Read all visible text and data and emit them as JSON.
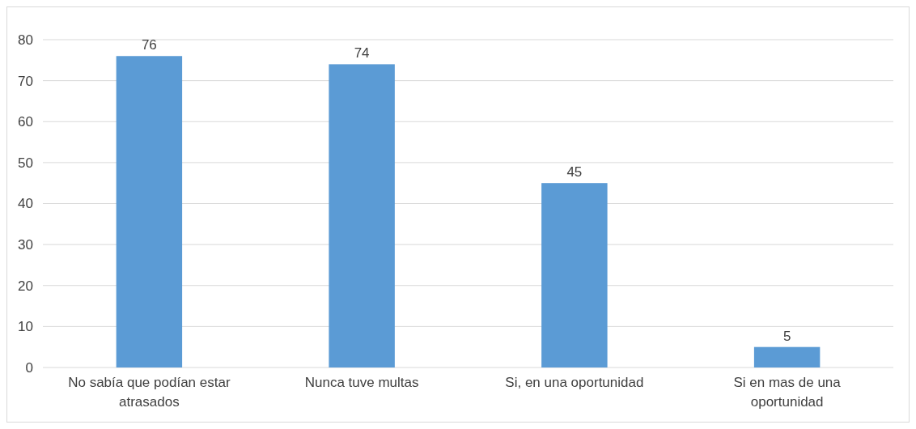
{
  "chart_data": {
    "type": "bar",
    "categories": [
      "No sabía que podían estar atrasados",
      "Nunca tuve multas",
      "Si, en una oportunidad",
      "Si en mas de una oportunidad"
    ],
    "values": [
      76,
      74,
      45,
      5
    ],
    "color": "#5b9bd5",
    "ylim": [
      0,
      80
    ],
    "yticks": [
      0,
      10,
      20,
      30,
      40,
      50,
      60,
      70,
      80
    ],
    "grid": "y",
    "data_labels": true
  }
}
